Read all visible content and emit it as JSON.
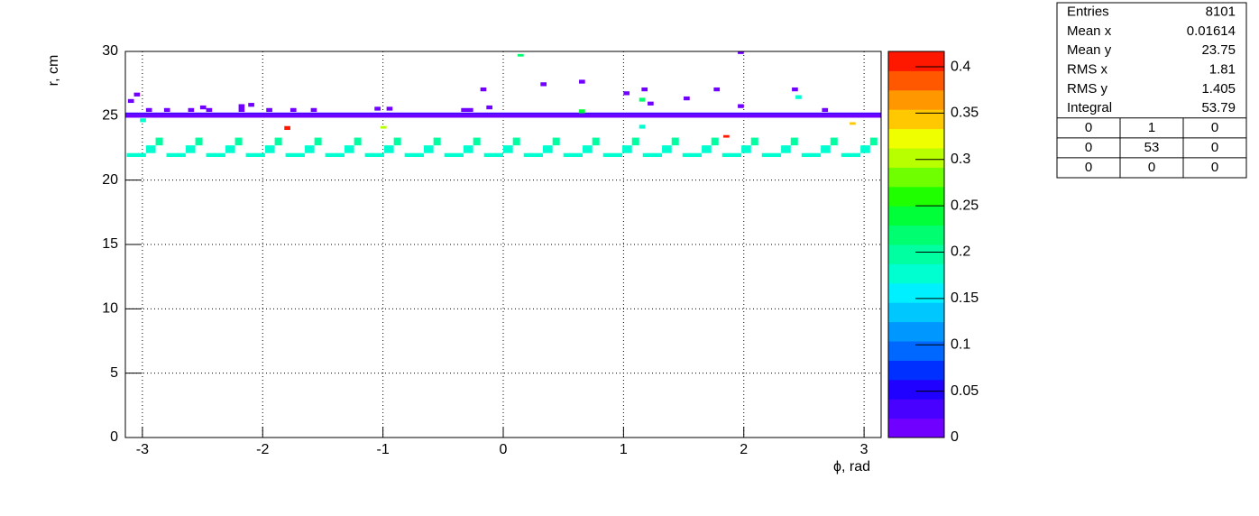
{
  "chart_data": {
    "type": "heatmap",
    "xlabel": "ϕ, rad",
    "ylabel": "r, cm",
    "xlim": [
      -3.1416,
      3.1416
    ],
    "ylim": [
      0,
      30
    ],
    "xticks": [
      -3,
      -2,
      -1,
      0,
      1,
      2,
      3
    ],
    "yticks": [
      0,
      5,
      10,
      15,
      20,
      25,
      30
    ],
    "zlim": [
      0,
      0.4166
    ],
    "zticks": [
      0,
      0.05,
      0.1,
      0.15,
      0.2,
      0.25,
      0.3,
      0.35,
      0.4
    ],
    "grid": true,
    "palette": [
      "#7000ff",
      "#4800ff",
      "#2000ff",
      "#0030ff",
      "#0068ff",
      "#0098ff",
      "#00c8ff",
      "#00f0ff",
      "#00ffd0",
      "#00ffa0",
      "#00ff70",
      "#00ff38",
      "#20ff00",
      "#70ff00",
      "#b8ff00",
      "#f0ff00",
      "#ffc800",
      "#ff9800",
      "#ff5800",
      "#ff1800"
    ],
    "cells": [
      [
        -3.1416,
        3.1416,
        24.85,
        25.1,
        0.01
      ],
      [
        -3.1416,
        3.1416,
        25.1,
        25.25,
        0.03
      ],
      [
        -3.13,
        -2.97,
        21.8,
        22.1,
        0.17
      ],
      [
        -2.97,
        -2.89,
        22.1,
        22.7,
        0.17
      ],
      [
        -2.89,
        -2.83,
        22.7,
        23.3,
        0.19
      ],
      [
        -2.8,
        -2.64,
        21.8,
        22.1,
        0.17
      ],
      [
        -2.64,
        -2.56,
        22.1,
        22.7,
        0.17
      ],
      [
        -2.56,
        -2.5,
        22.7,
        23.3,
        0.19
      ],
      [
        -2.47,
        -2.31,
        21.8,
        22.1,
        0.17
      ],
      [
        -2.31,
        -2.23,
        22.1,
        22.7,
        0.17
      ],
      [
        -2.23,
        -2.17,
        22.7,
        23.3,
        0.19
      ],
      [
        -2.14,
        -1.98,
        21.8,
        22.1,
        0.17
      ],
      [
        -1.98,
        -1.9,
        22.1,
        22.7,
        0.17
      ],
      [
        -1.9,
        -1.84,
        22.7,
        23.3,
        0.19
      ],
      [
        -1.81,
        -1.65,
        21.8,
        22.1,
        0.17
      ],
      [
        -1.65,
        -1.57,
        22.1,
        22.7,
        0.17
      ],
      [
        -1.57,
        -1.51,
        22.7,
        23.3,
        0.19
      ],
      [
        -1.48,
        -1.32,
        21.8,
        22.1,
        0.17
      ],
      [
        -1.32,
        -1.24,
        22.1,
        22.7,
        0.17
      ],
      [
        -1.24,
        -1.18,
        22.7,
        23.3,
        0.19
      ],
      [
        -1.15,
        -0.99,
        21.8,
        22.1,
        0.17
      ],
      [
        -0.99,
        -0.91,
        22.1,
        22.7,
        0.17
      ],
      [
        -0.91,
        -0.85,
        22.7,
        23.3,
        0.19
      ],
      [
        -0.82,
        -0.66,
        21.8,
        22.1,
        0.17
      ],
      [
        -0.66,
        -0.58,
        22.1,
        22.7,
        0.17
      ],
      [
        -0.58,
        -0.52,
        22.7,
        23.3,
        0.19
      ],
      [
        -0.49,
        -0.33,
        21.8,
        22.1,
        0.17
      ],
      [
        -0.33,
        -0.25,
        22.1,
        22.7,
        0.17
      ],
      [
        -0.25,
        -0.19,
        22.7,
        23.3,
        0.19
      ],
      [
        -0.16,
        0.0,
        21.8,
        22.1,
        0.17
      ],
      [
        0.0,
        0.08,
        22.1,
        22.7,
        0.17
      ],
      [
        0.08,
        0.14,
        22.7,
        23.3,
        0.19
      ],
      [
        0.17,
        0.33,
        21.8,
        22.1,
        0.17
      ],
      [
        0.33,
        0.41,
        22.1,
        22.7,
        0.17
      ],
      [
        0.41,
        0.47,
        22.7,
        23.3,
        0.19
      ],
      [
        0.5,
        0.66,
        21.8,
        22.1,
        0.17
      ],
      [
        0.66,
        0.74,
        22.1,
        22.7,
        0.17
      ],
      [
        0.74,
        0.8,
        22.7,
        23.3,
        0.19
      ],
      [
        0.83,
        0.99,
        21.8,
        22.1,
        0.17
      ],
      [
        0.99,
        1.07,
        22.1,
        22.7,
        0.17
      ],
      [
        1.07,
        1.13,
        22.7,
        23.3,
        0.19
      ],
      [
        1.16,
        1.32,
        21.8,
        22.1,
        0.17
      ],
      [
        1.32,
        1.4,
        22.1,
        22.7,
        0.17
      ],
      [
        1.4,
        1.46,
        22.7,
        23.3,
        0.19
      ],
      [
        1.49,
        1.65,
        21.8,
        22.1,
        0.17
      ],
      [
        1.65,
        1.73,
        22.1,
        22.7,
        0.17
      ],
      [
        1.73,
        1.79,
        22.7,
        23.3,
        0.19
      ],
      [
        1.82,
        1.98,
        21.8,
        22.1,
        0.17
      ],
      [
        1.98,
        2.06,
        22.1,
        22.7,
        0.17
      ],
      [
        2.06,
        2.12,
        22.7,
        23.3,
        0.19
      ],
      [
        2.15,
        2.31,
        21.8,
        22.1,
        0.17
      ],
      [
        2.31,
        2.39,
        22.1,
        22.7,
        0.17
      ],
      [
        2.39,
        2.45,
        22.7,
        23.3,
        0.19
      ],
      [
        2.48,
        2.64,
        21.8,
        22.1,
        0.17
      ],
      [
        2.64,
        2.72,
        22.1,
        22.7,
        0.17
      ],
      [
        2.72,
        2.78,
        22.7,
        23.3,
        0.19
      ],
      [
        2.81,
        2.97,
        21.8,
        22.1,
        0.17
      ],
      [
        2.97,
        3.05,
        22.1,
        22.7,
        0.17
      ],
      [
        3.05,
        3.11,
        22.7,
        23.3,
        0.19
      ],
      [
        -3.12,
        -3.07,
        26.0,
        26.3,
        0.01
      ],
      [
        -3.07,
        -3.02,
        26.5,
        26.8,
        0.01
      ],
      [
        -2.97,
        -2.92,
        25.3,
        25.6,
        0.01
      ],
      [
        -2.82,
        -2.77,
        25.3,
        25.6,
        0.01
      ],
      [
        -2.62,
        -2.57,
        25.3,
        25.6,
        0.01
      ],
      [
        -2.52,
        -2.47,
        25.5,
        25.8,
        0.01
      ],
      [
        -2.47,
        -2.42,
        25.3,
        25.6,
        0.01
      ],
      [
        -2.2,
        -2.15,
        25.3,
        25.9,
        0.01
      ],
      [
        -2.12,
        -2.07,
        25.7,
        26.0,
        0.01
      ],
      [
        -1.97,
        -1.92,
        25.3,
        25.6,
        0.01
      ],
      [
        -1.77,
        -1.72,
        25.3,
        25.6,
        0.01
      ],
      [
        -1.6,
        -1.55,
        25.3,
        25.6,
        0.01
      ],
      [
        -1.07,
        -1.02,
        25.4,
        25.7,
        0.01
      ],
      [
        -0.97,
        -0.92,
        25.4,
        25.7,
        0.01
      ],
      [
        -0.35,
        -0.25,
        25.3,
        25.6,
        0.01
      ],
      [
        -0.19,
        -0.14,
        26.9,
        27.2,
        0.01
      ],
      [
        -0.14,
        -0.09,
        25.5,
        25.8,
        0.01
      ],
      [
        0.31,
        0.36,
        27.3,
        27.6,
        0.01
      ],
      [
        0.63,
        0.68,
        27.5,
        27.8,
        0.01
      ],
      [
        1.0,
        1.05,
        26.6,
        26.9,
        0.01
      ],
      [
        1.15,
        1.2,
        26.9,
        27.2,
        0.01
      ],
      [
        1.2,
        1.25,
        25.8,
        26.1,
        0.01
      ],
      [
        1.5,
        1.55,
        26.2,
        26.5,
        0.01
      ],
      [
        1.75,
        1.8,
        26.9,
        27.2,
        0.01
      ],
      [
        1.95,
        2.0,
        29.8,
        30.0,
        0.01
      ],
      [
        1.95,
        2.0,
        25.6,
        25.9,
        0.01
      ],
      [
        2.4,
        2.45,
        26.9,
        27.2,
        0.01
      ],
      [
        2.65,
        2.7,
        25.3,
        25.6,
        0.01
      ],
      [
        -3.02,
        -2.97,
        24.5,
        24.8,
        0.17
      ],
      [
        2.43,
        2.48,
        26.3,
        26.6,
        0.17
      ],
      [
        1.13,
        1.18,
        24.0,
        24.3,
        0.17
      ],
      [
        -1.82,
        -1.77,
        23.9,
        24.2,
        0.4
      ],
      [
        -1.02,
        -0.97,
        24.0,
        24.2,
        0.3
      ],
      [
        0.12,
        0.17,
        29.6,
        29.8,
        0.22
      ],
      [
        1.13,
        1.18,
        26.1,
        26.4,
        0.22
      ],
      [
        0.63,
        0.68,
        25.2,
        25.5,
        0.23
      ],
      [
        1.83,
        1.88,
        23.3,
        23.5,
        0.41
      ],
      [
        2.88,
        2.93,
        24.3,
        24.5,
        0.35
      ]
    ]
  },
  "stats": {
    "rows": [
      [
        "Entries",
        "8101"
      ],
      [
        "Mean x",
        "0.01614"
      ],
      [
        "Mean y",
        "23.75"
      ],
      [
        "RMS x",
        "1.81"
      ],
      [
        "RMS y",
        "1.405"
      ],
      [
        "Integral",
        "53.79"
      ]
    ],
    "grid": [
      [
        "0",
        "1",
        "0"
      ],
      [
        "0",
        "53",
        "0"
      ],
      [
        "0",
        "0",
        "0"
      ]
    ]
  }
}
